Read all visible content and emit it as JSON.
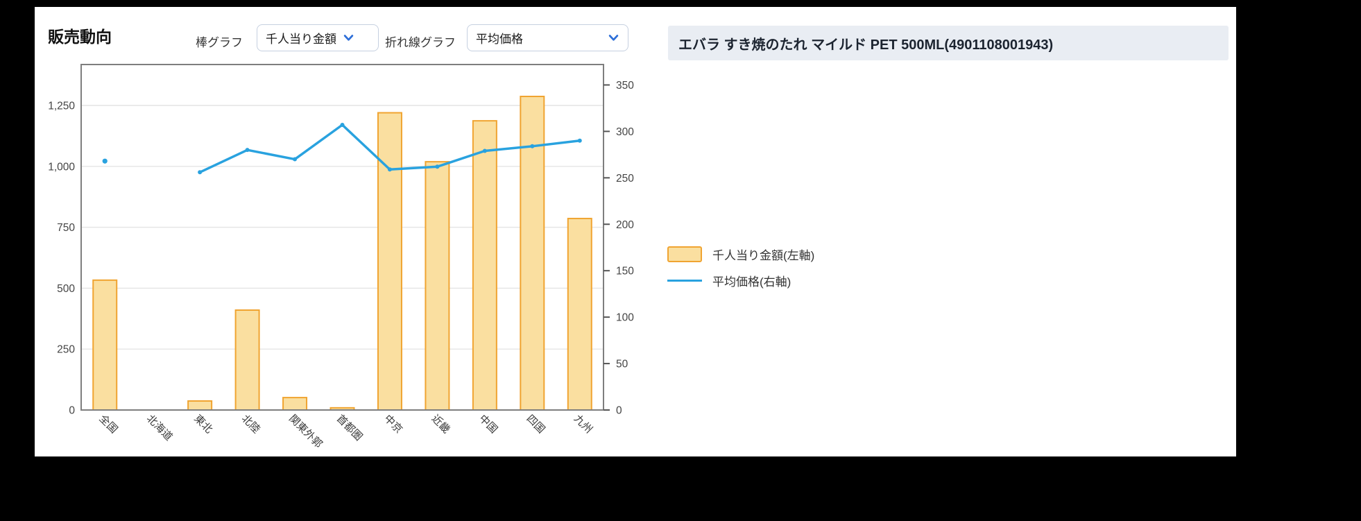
{
  "page": {
    "background": "#000000",
    "panel_background": "#ffffff"
  },
  "header": {
    "title": "販売動向",
    "bar_graph_label": "棒グラフ",
    "bar_graph_select": {
      "value": "千人当り金額"
    },
    "line_graph_label": "折れ線グラフ",
    "line_graph_select": {
      "value": "平均価格"
    }
  },
  "product_header": {
    "title": "エバラ すき焼のたれ マイルド PET 500ML(4901108001943)"
  },
  "legend": [
    {
      "label": "千人当り金額(左軸)",
      "type": "bar",
      "fill": "#FADFA0",
      "border": "#F0A431"
    },
    {
      "label": "平均価格(右軸)",
      "type": "line",
      "color": "#29A2DF"
    }
  ],
  "chart_data": {
    "type": "bar",
    "subtype": "dual-axis bar+line",
    "categories": [
      "全国",
      "北海道",
      "東北",
      "北陸",
      "関東外郭",
      "首都圏",
      "中京",
      "近畿",
      "中国",
      "四国",
      "九州"
    ],
    "series": [
      {
        "name": "千人当り金額(左軸)",
        "type": "bar",
        "axis": "left",
        "values": [
          533,
          0,
          37,
          410,
          51,
          9,
          1220,
          1019,
          1187,
          1287,
          786
        ]
      },
      {
        "name": "平均価格(右軸)",
        "type": "line",
        "axis": "right",
        "values": [
          268,
          null,
          256,
          280,
          270,
          307,
          259,
          262,
          279,
          284,
          290
        ]
      }
    ],
    "left_axis": {
      "tick_labels": [
        "0",
        "250",
        "500",
        "750",
        "1,000",
        "1,250"
      ],
      "tick_values": [
        0,
        250,
        500,
        750,
        1000,
        1250
      ],
      "max": 1418
    },
    "right_axis": {
      "tick_labels": [
        "0",
        "50",
        "100",
        "150",
        "200",
        "250",
        "300",
        "350"
      ],
      "tick_values": [
        0,
        50,
        100,
        150,
        200,
        250,
        300,
        350
      ],
      "max": 372
    },
    "grid": true,
    "legend_position": "right",
    "colors": {
      "bar_fill": "#FADFA0",
      "bar_border": "#F0A431",
      "line": "#29A2DF",
      "grid": "#e4e4e4",
      "frame": "#7e7e7e",
      "axis_text": "#444444"
    }
  }
}
